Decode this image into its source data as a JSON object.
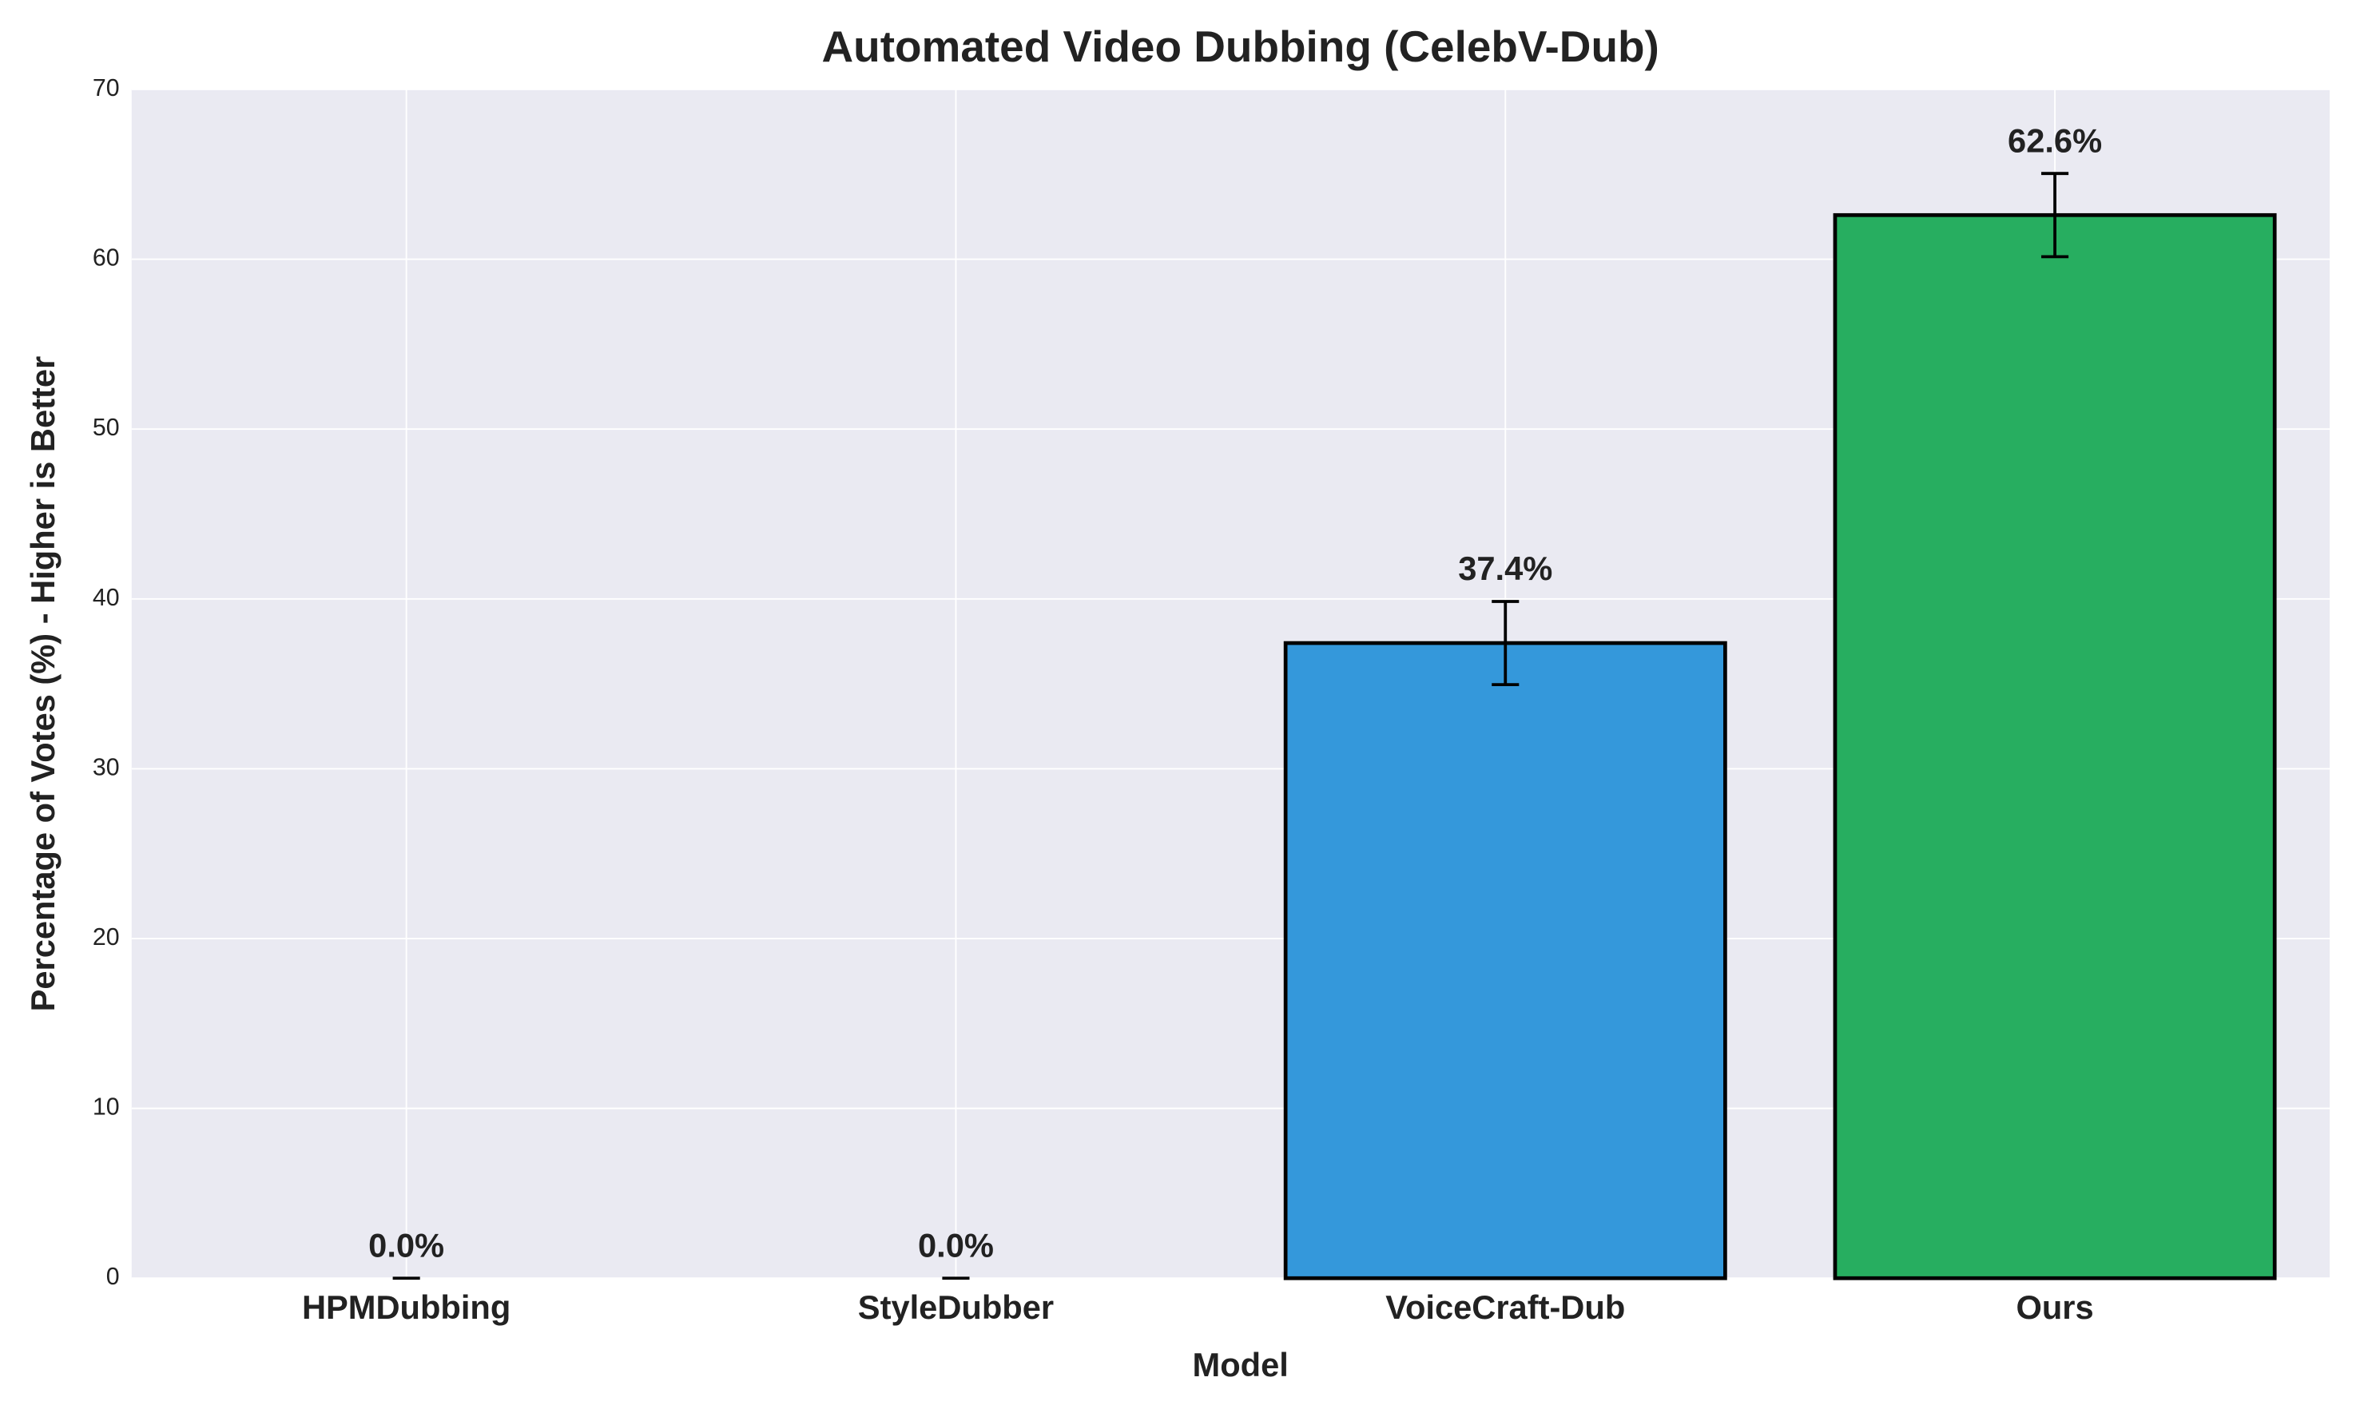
{
  "chart_data": {
    "type": "bar",
    "title": "Automated Video Dubbing (CelebV-Dub)",
    "xlabel": "Model",
    "ylabel": "Percentage of Votes (%) - Higher is Better",
    "categories": [
      "HPMDubbing",
      "StyleDubber",
      "VoiceCraft-Dub",
      "Ours"
    ],
    "values": [
      0.0,
      0.0,
      37.4,
      62.6
    ],
    "errors": [
      0,
      0,
      2.45,
      2.45
    ],
    "value_labels": [
      "0.0%",
      "0.0%",
      "37.4%",
      "62.6%"
    ],
    "colors": [
      "#95a5a6",
      "#95a5a6",
      "#3498db",
      "#27ae60"
    ],
    "ylim": [
      0,
      70
    ],
    "yticks": [
      0,
      10,
      20,
      30,
      40,
      50,
      60,
      70
    ],
    "grid": true
  }
}
